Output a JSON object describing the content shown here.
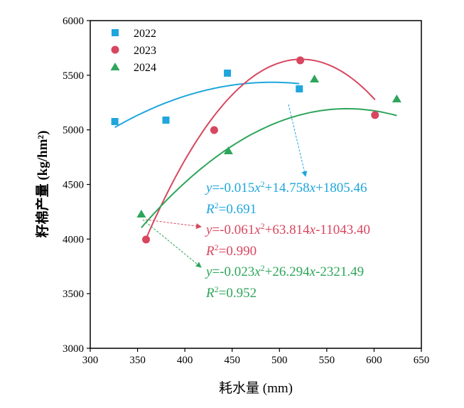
{
  "chart_data": {
    "type": "scatter",
    "title": "",
    "xlabel": "耗水量 (mm)",
    "ylabel": "籽棉产量 (kg/hm²)",
    "xlim": [
      300,
      650
    ],
    "ylim": [
      3000,
      6000
    ],
    "xticks": [
      300,
      350,
      400,
      450,
      500,
      550,
      600,
      650
    ],
    "yticks": [
      3000,
      3500,
      4000,
      4500,
      5000,
      5500,
      6000
    ],
    "grid": false,
    "legend_position": "top-left",
    "series": [
      {
        "name": "2022",
        "marker": "square",
        "color": "#1fa6dc",
        "x": [
          326,
          380,
          445,
          521
        ],
        "y": [
          5076,
          5089,
          5519,
          5375
        ],
        "fit": {
          "a": -0.015,
          "b": 14.758,
          "c": 1805.46
        },
        "equation": "y=-0.015x²+14.758x+1805.46",
        "r2": "R²=0.691"
      },
      {
        "name": "2023",
        "marker": "circle",
        "color": "#d8465f",
        "x": [
          359,
          431,
          522,
          601
        ],
        "y": [
          3996,
          4998,
          5636,
          5135
        ],
        "fit": {
          "a": -0.061,
          "b": 63.814,
          "c": -11043.4
        },
        "equation": "y=-0.061x²+63.814x-11043.40",
        "r2": "R²=0.990"
      },
      {
        "name": "2024",
        "marker": "triangle",
        "color": "#2ea55a",
        "x": [
          354,
          446,
          537,
          624
        ],
        "y": [
          4230,
          4809,
          5466,
          5284
        ],
        "fit": {
          "a": -0.023,
          "b": 26.294,
          "c": -2321.49
        },
        "equation": "y=-0.023x²+26.294x-2321.49",
        "r2": "R²=0.952"
      }
    ]
  }
}
